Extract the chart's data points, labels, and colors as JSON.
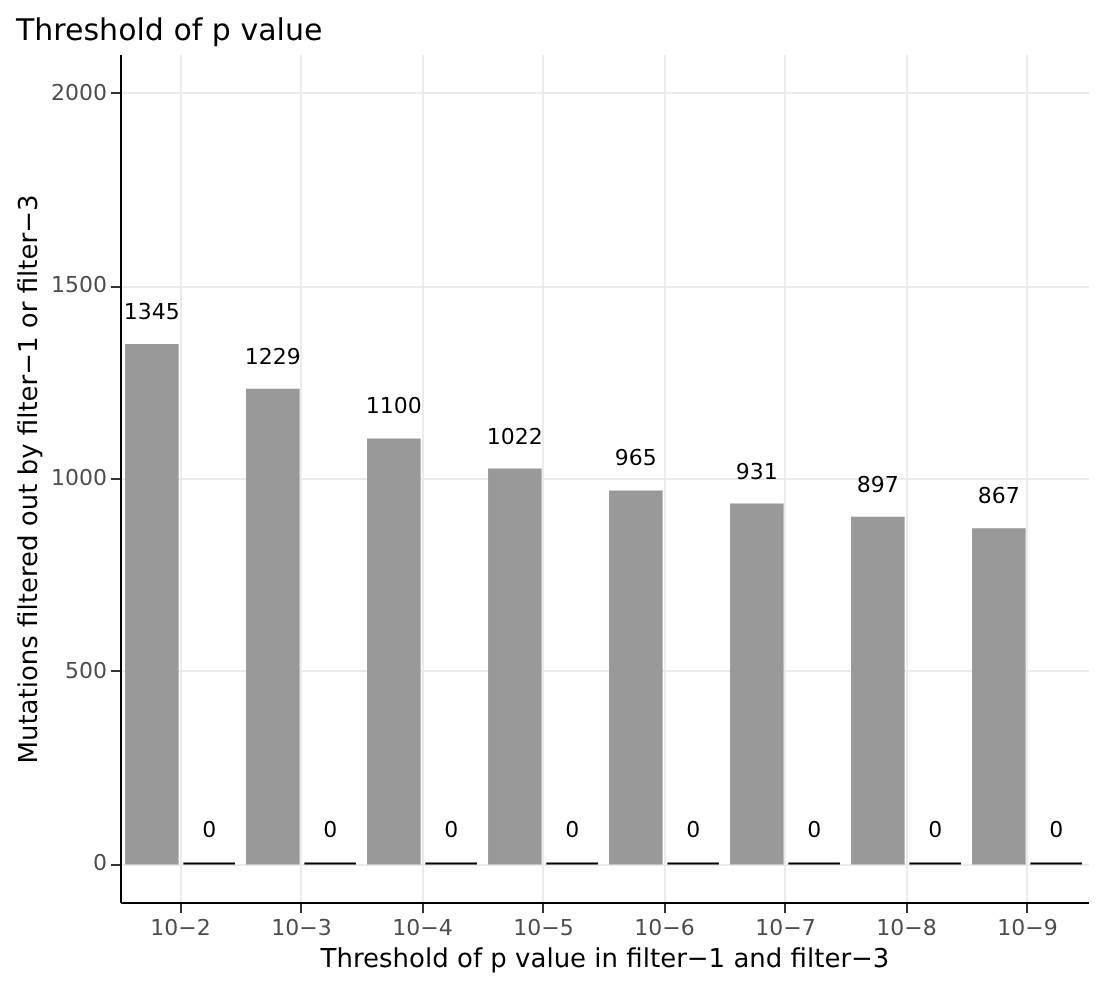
{
  "chart_data": {
    "type": "bar",
    "title": "Threshold of p value",
    "xlabel": "Threshold of p value in filter−1 and filter−3",
    "ylabel": "Mutations filtered out by filter−1 or filter−3",
    "categories": [
      "10−2",
      "10−3",
      "10−4",
      "10−5",
      "10−6",
      "10−7",
      "10−8",
      "10−9"
    ],
    "series": [
      {
        "color": "#999999",
        "values": [
          1345,
          1229,
          1100,
          1022,
          965,
          931,
          897,
          867
        ]
      },
      {
        "color": "#000000",
        "values": [
          0,
          0,
          0,
          0,
          0,
          0,
          0,
          0
        ]
      }
    ],
    "ylim": [
      -100,
      2100
    ],
    "yticks": [
      0,
      500,
      1000,
      1500,
      2000
    ],
    "grid": true,
    "legend": false,
    "data_labels": true
  }
}
